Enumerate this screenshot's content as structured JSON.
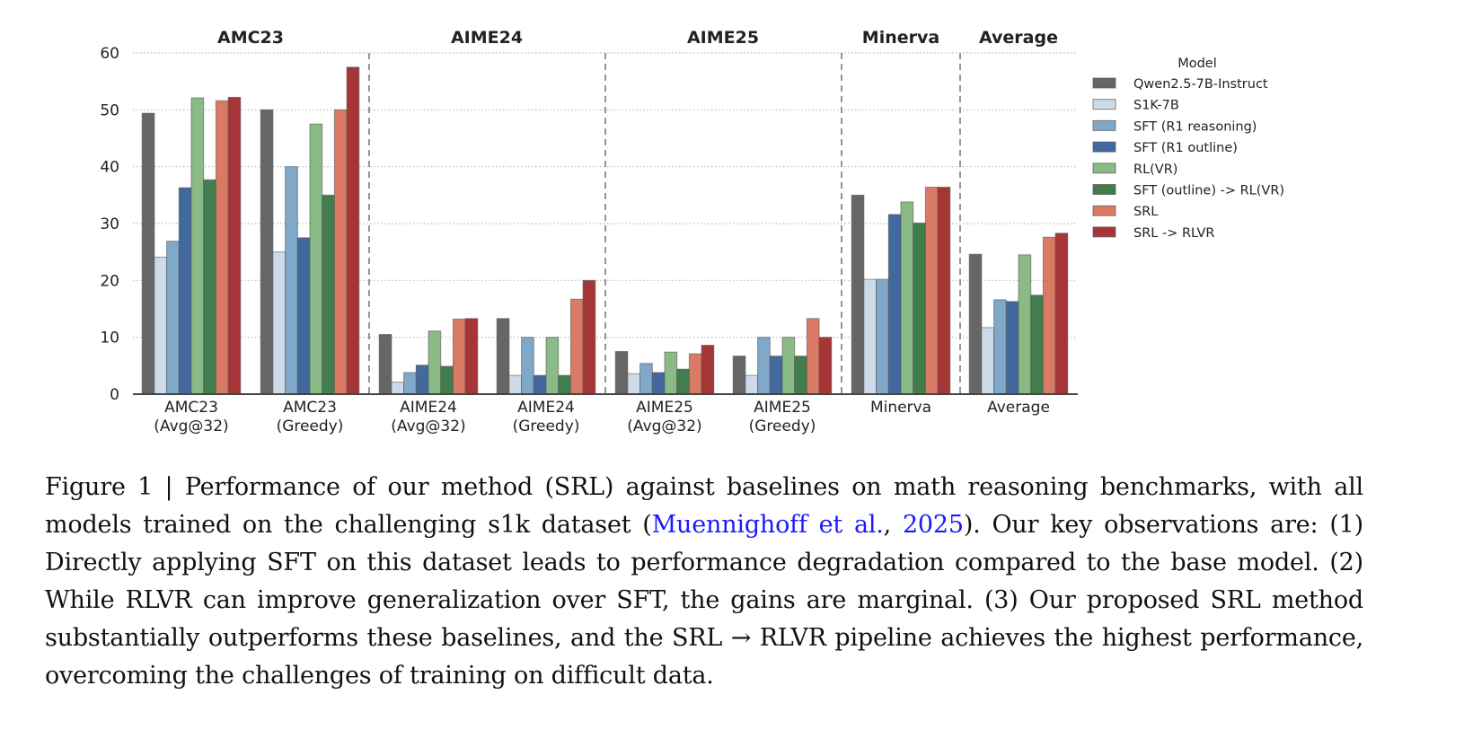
{
  "chart_data": {
    "type": "bar",
    "ylim": [
      0,
      60
    ],
    "yticks": [
      0,
      10,
      20,
      30,
      40,
      50,
      60
    ],
    "grid": true,
    "legend_title": "Model",
    "legend_placement": "right",
    "panel_titles": [
      "AMC23",
      "AIME24",
      "AIME25",
      "Minerva",
      "Average"
    ],
    "categories": [
      [
        "AMC23",
        "(Avg@32)"
      ],
      [
        "AMC23",
        "(Greedy)"
      ],
      [
        "AIME24",
        "(Avg@32)"
      ],
      [
        "AIME24",
        "(Greedy)"
      ],
      [
        "AIME25",
        "(Avg@32)"
      ],
      [
        "AIME25",
        "(Greedy)"
      ],
      [
        "Minerva"
      ],
      [
        "Average"
      ]
    ],
    "series": [
      {
        "name": "Qwen2.5-7B-Instruct",
        "color": "#666666",
        "values": [
          49.4,
          50.0,
          10.5,
          13.3,
          7.5,
          6.7,
          35.0,
          24.6
        ]
      },
      {
        "name": "S1K-7B",
        "color": "#cddbe8",
        "values": [
          24.1,
          25.0,
          2.1,
          3.3,
          3.6,
          3.3,
          20.2,
          11.7
        ]
      },
      {
        "name": "SFT (R1 reasoning)",
        "color": "#80a8c8",
        "values": [
          26.9,
          40.0,
          3.8,
          10.0,
          5.4,
          10.0,
          20.2,
          16.6
        ]
      },
      {
        "name": "SFT (R1 outline)",
        "color": "#41699e",
        "values": [
          36.3,
          27.5,
          5.1,
          3.3,
          3.8,
          6.7,
          31.6,
          16.3
        ]
      },
      {
        "name": "RL(VR)",
        "color": "#8aba85",
        "values": [
          52.1,
          47.5,
          11.1,
          10.0,
          7.4,
          10.0,
          33.8,
          24.5
        ]
      },
      {
        "name": "SFT (outline) -> RL(VR)",
        "color": "#427d4d",
        "values": [
          37.7,
          35.0,
          4.9,
          3.3,
          4.4,
          6.7,
          30.1,
          17.4
        ]
      },
      {
        "name": "SRL",
        "color": "#d97b64",
        "values": [
          51.6,
          50.0,
          13.2,
          16.7,
          7.1,
          13.3,
          36.4,
          27.6
        ]
      },
      {
        "name": "SRL -> RLVR",
        "color": "#a63537",
        "values": [
          52.2,
          57.5,
          13.3,
          20.0,
          8.6,
          10.0,
          36.4,
          28.3
        ]
      }
    ]
  },
  "caption": {
    "prefix": "Figure 1 | Performance of our method (SRL) against baselines on math reasoning benchmarks, with all models trained on the challenging s1k dataset (",
    "cite_author": "Muennighoff et al.",
    "cite_sep": ", ",
    "cite_year": "2025",
    "suffix": "). Our key observations are: (1) Directly applying SFT on this dataset leads to performance degradation compared to the base model. (2) While RLVR can improve generalization over SFT, the gains are marginal. (3) Our proposed SRL method substantially outperforms these baselines, and the SRL → RLVR pipeline achieves the highest performance, overcoming the challenges of training on difficult data."
  }
}
